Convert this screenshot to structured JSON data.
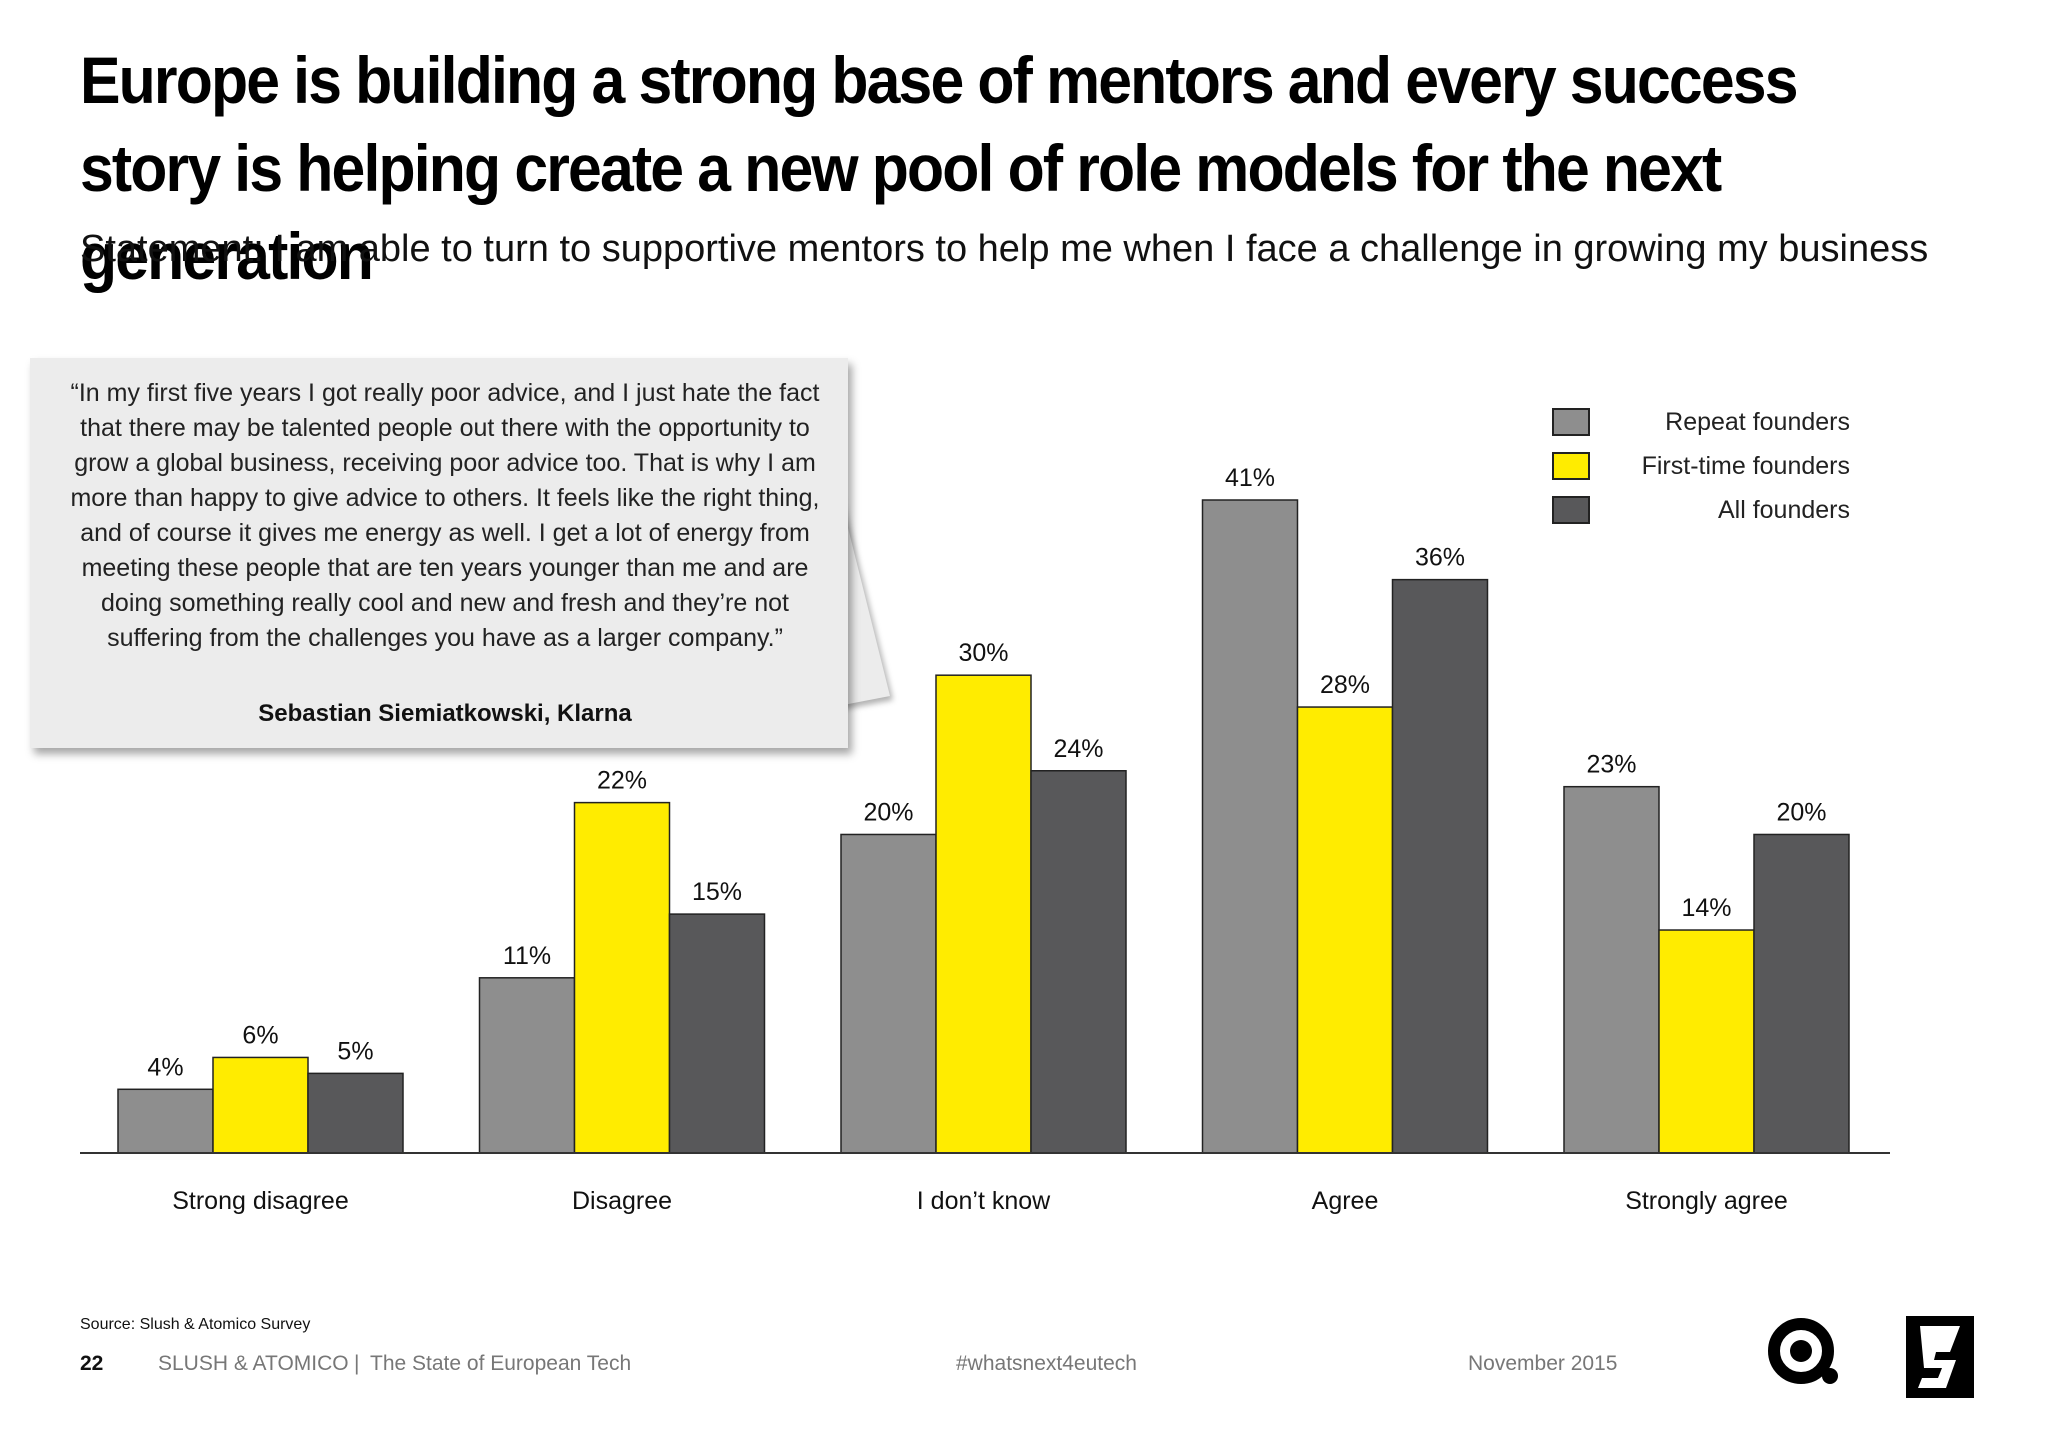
{
  "header": {
    "title": "Europe is building a strong base of mentors and every success story is helping create a new pool of role models for the next generation",
    "subtitle": "Statement: I am able to turn to supportive mentors to help me when I face a challenge in growing my business"
  },
  "quote": {
    "text": "“In my first five years I got really poor advice, and I just hate the fact that there may be talented people out there with the opportunity to grow a global business, receiving poor advice too. That is why I am more than happy to give advice to others. It feels like the right thing, and of course it gives me energy as well. I get a lot of energy from meeting these people that are ten years younger than me and are doing something really cool and new and fresh and they’re not suffering from the challenges you have as a larger company.”",
    "author": "Sebastian Siemiatkowski, Klarna"
  },
  "chart_data": {
    "type": "bar",
    "categories": [
      "Strong disagree",
      "Disagree",
      "I don’t know",
      "Agree",
      "Strongly agree"
    ],
    "series": [
      {
        "name": "Repeat founders",
        "values": [
          4,
          11,
          20,
          41,
          23
        ],
        "color": "#8e8e8e"
      },
      {
        "name": "First-time founders",
        "values": [
          6,
          22,
          30,
          28,
          14
        ],
        "color": "#ffec00"
      },
      {
        "name": "All founders",
        "values": [
          5,
          15,
          24,
          36,
          20
        ],
        "color": "#58585a"
      }
    ],
    "value_suffix": "%",
    "ylim": [
      0,
      41
    ],
    "grid": false,
    "legend_position": "top-right"
  },
  "footer": {
    "source": "Source: Slush & Atomico Survey",
    "page_number": "22",
    "publisher": "SLUSH & ATOMICO",
    "separator": "|",
    "report": "The State of European Tech",
    "hashtag": "#whatsnext4eutech",
    "date": "November 2015"
  }
}
